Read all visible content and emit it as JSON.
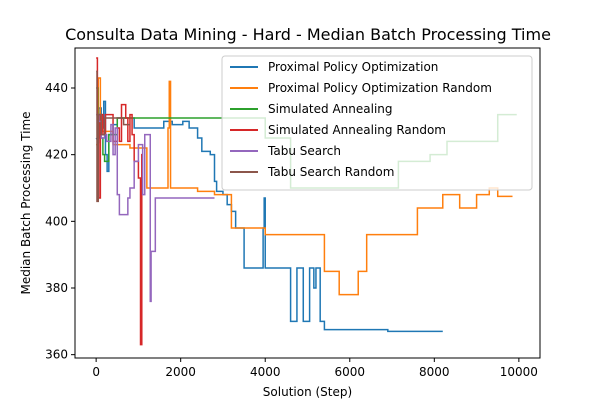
{
  "chart_data": {
    "type": "line",
    "title": "Consulta Data Mining - Hard - Median Batch Processing Time",
    "xlabel": "Solution (Step)",
    "ylabel": "Median Batch Processing Time",
    "xlim": [
      -500,
      10500
    ],
    "ylim": [
      359,
      452
    ],
    "xticks": [
      0,
      2000,
      4000,
      6000,
      8000,
      10000
    ],
    "yticks": [
      360,
      380,
      400,
      420,
      440
    ],
    "legend_position": "upper right",
    "grid": false,
    "series": [
      {
        "name": "Proximal Policy Optimization",
        "color": "#1f77b4",
        "points": [
          [
            0,
            425
          ],
          [
            60,
            424
          ],
          [
            60,
            434
          ],
          [
            120,
            434
          ],
          [
            120,
            428
          ],
          [
            180,
            428
          ],
          [
            180,
            436
          ],
          [
            220,
            436
          ],
          [
            220,
            420
          ],
          [
            260,
            420
          ],
          [
            260,
            415
          ],
          [
            300,
            415
          ],
          [
            300,
            426
          ],
          [
            400,
            426
          ],
          [
            400,
            429
          ],
          [
            500,
            429
          ],
          [
            500,
            431
          ],
          [
            900,
            431
          ],
          [
            900,
            428
          ],
          [
            1600,
            428
          ],
          [
            1600,
            430
          ],
          [
            1800,
            430
          ],
          [
            1800,
            429
          ],
          [
            2050,
            429
          ],
          [
            2050,
            430
          ],
          [
            2200,
            430
          ],
          [
            2200,
            428
          ],
          [
            2400,
            428
          ],
          [
            2400,
            425
          ],
          [
            2500,
            425
          ],
          [
            2500,
            421
          ],
          [
            2700,
            421
          ],
          [
            2700,
            420
          ],
          [
            2800,
            420
          ],
          [
            2800,
            412
          ],
          [
            2850,
            412
          ],
          [
            2850,
            409
          ],
          [
            3000,
            409
          ],
          [
            3000,
            408
          ],
          [
            3100,
            408
          ],
          [
            3100,
            405
          ],
          [
            3200,
            405
          ],
          [
            3200,
            403
          ],
          [
            3300,
            403
          ],
          [
            3300,
            398
          ],
          [
            3500,
            398
          ],
          [
            3500,
            386
          ],
          [
            3950,
            386
          ],
          [
            3950,
            398
          ],
          [
            3975,
            398
          ],
          [
            3975,
            407
          ],
          [
            4000,
            407
          ],
          [
            4000,
            386
          ],
          [
            4600,
            386
          ],
          [
            4600,
            370
          ],
          [
            4750,
            370
          ],
          [
            4750,
            386
          ],
          [
            4900,
            386
          ],
          [
            4900,
            370
          ],
          [
            5050,
            370
          ],
          [
            5050,
            386
          ],
          [
            5150,
            386
          ],
          [
            5150,
            380
          ],
          [
            5200,
            380
          ],
          [
            5200,
            386
          ],
          [
            5300,
            386
          ],
          [
            5300,
            370
          ],
          [
            5400,
            370
          ],
          [
            5400,
            367.5
          ],
          [
            6900,
            367.5
          ],
          [
            6900,
            367
          ],
          [
            8200,
            367
          ]
        ]
      },
      {
        "name": "Proximal Policy Optimization Random",
        "color": "#ff7f0e",
        "points": [
          [
            0,
            423
          ],
          [
            50,
            423
          ],
          [
            50,
            443
          ],
          [
            100,
            443
          ],
          [
            100,
            432
          ],
          [
            150,
            432
          ],
          [
            150,
            427
          ],
          [
            400,
            427
          ],
          [
            400,
            423
          ],
          [
            800,
            423
          ],
          [
            800,
            422
          ],
          [
            1200,
            422
          ],
          [
            1200,
            410
          ],
          [
            1700,
            410
          ],
          [
            1700,
            428
          ],
          [
            1730,
            428
          ],
          [
            1730,
            442
          ],
          [
            1760,
            442
          ],
          [
            1760,
            410
          ],
          [
            2400,
            410
          ],
          [
            2400,
            409
          ],
          [
            2800,
            409
          ],
          [
            2800,
            408
          ],
          [
            3200,
            408
          ],
          [
            3200,
            398
          ],
          [
            4000,
            398
          ],
          [
            4000,
            396
          ],
          [
            5400,
            396
          ],
          [
            5400,
            385
          ],
          [
            5750,
            385
          ],
          [
            5750,
            378
          ],
          [
            6200,
            378
          ],
          [
            6200,
            385
          ],
          [
            6400,
            385
          ],
          [
            6400,
            396
          ],
          [
            7600,
            396
          ],
          [
            7600,
            404
          ],
          [
            8200,
            404
          ],
          [
            8200,
            408
          ],
          [
            8600,
            408
          ],
          [
            8600,
            404
          ],
          [
            9000,
            404
          ],
          [
            9000,
            408
          ],
          [
            9300,
            408
          ],
          [
            9300,
            410
          ],
          [
            9500,
            410
          ],
          [
            9500,
            407.5
          ],
          [
            9850,
            407.5
          ]
        ]
      },
      {
        "name": "Simulated Annealing",
        "color": "#2ca02c",
        "points": [
          [
            0,
            440
          ],
          [
            40,
            440
          ],
          [
            40,
            432
          ],
          [
            100,
            432
          ],
          [
            100,
            425
          ],
          [
            160,
            425
          ],
          [
            160,
            420
          ],
          [
            200,
            420
          ],
          [
            200,
            418
          ],
          [
            300,
            418
          ],
          [
            300,
            426
          ],
          [
            500,
            426
          ],
          [
            500,
            431
          ],
          [
            4000,
            431
          ],
          [
            4000,
            425
          ],
          [
            4600,
            425
          ],
          [
            4600,
            410
          ],
          [
            7150,
            410
          ],
          [
            7150,
            418
          ],
          [
            7900,
            418
          ],
          [
            7900,
            420
          ],
          [
            8300,
            420
          ],
          [
            8300,
            424
          ],
          [
            9500,
            424
          ],
          [
            9500,
            432
          ],
          [
            9950,
            432
          ]
        ]
      },
      {
        "name": "Simulated Annealing Random",
        "color": "#d62728",
        "points": [
          [
            0,
            449
          ],
          [
            30,
            449
          ],
          [
            30,
            430
          ],
          [
            60,
            430
          ],
          [
            60,
            407
          ],
          [
            100,
            407
          ],
          [
            100,
            432
          ],
          [
            160,
            432
          ],
          [
            160,
            426
          ],
          [
            220,
            426
          ],
          [
            220,
            432
          ],
          [
            400,
            432
          ],
          [
            400,
            424
          ],
          [
            500,
            424
          ],
          [
            500,
            428
          ],
          [
            550,
            428
          ],
          [
            550,
            424
          ],
          [
            600,
            424
          ],
          [
            600,
            435
          ],
          [
            700,
            435
          ],
          [
            700,
            431
          ],
          [
            750,
            431
          ],
          [
            750,
            424
          ],
          [
            800,
            424
          ],
          [
            800,
            432
          ],
          [
            850,
            432
          ],
          [
            850,
            426
          ],
          [
            900,
            426
          ],
          [
            900,
            418
          ],
          [
            1000,
            418
          ],
          [
            1000,
            413
          ],
          [
            1050,
            413
          ],
          [
            1050,
            363
          ],
          [
            1080,
            363
          ],
          [
            1080,
            420
          ],
          [
            1100,
            420
          ]
        ]
      },
      {
        "name": "Tabu Search",
        "color": "#9467bd",
        "points": [
          [
            0,
            432
          ],
          [
            60,
            432
          ],
          [
            60,
            430
          ],
          [
            120,
            430
          ],
          [
            120,
            425
          ],
          [
            200,
            425
          ],
          [
            200,
            426
          ],
          [
            250,
            426
          ],
          [
            250,
            424
          ],
          [
            350,
            424
          ],
          [
            350,
            429
          ],
          [
            400,
            429
          ],
          [
            400,
            420
          ],
          [
            450,
            420
          ],
          [
            450,
            428
          ],
          [
            500,
            428
          ],
          [
            500,
            408
          ],
          [
            550,
            408
          ],
          [
            550,
            402
          ],
          [
            750,
            402
          ],
          [
            750,
            407
          ],
          [
            800,
            407
          ],
          [
            800,
            410
          ],
          [
            900,
            410
          ],
          [
            900,
            418
          ],
          [
            1000,
            418
          ],
          [
            1000,
            423
          ],
          [
            1100,
            423
          ],
          [
            1100,
            408
          ],
          [
            1150,
            408
          ],
          [
            1150,
            426
          ],
          [
            1280,
            426
          ],
          [
            1280,
            376
          ],
          [
            1300,
            376
          ],
          [
            1300,
            391
          ],
          [
            1400,
            391
          ],
          [
            1400,
            407
          ],
          [
            2800,
            407
          ]
        ]
      },
      {
        "name": "Tabu Search Random",
        "color": "#8c564b",
        "points": [
          [
            0,
            445
          ],
          [
            20,
            445
          ],
          [
            20,
            406
          ],
          [
            50,
            406
          ],
          [
            50,
            432
          ],
          [
            120,
            432
          ],
          [
            120,
            426
          ],
          [
            200,
            426
          ],
          [
            200,
            431
          ],
          [
            650,
            431
          ],
          [
            650,
            429
          ],
          [
            800,
            429
          ]
        ]
      }
    ]
  }
}
